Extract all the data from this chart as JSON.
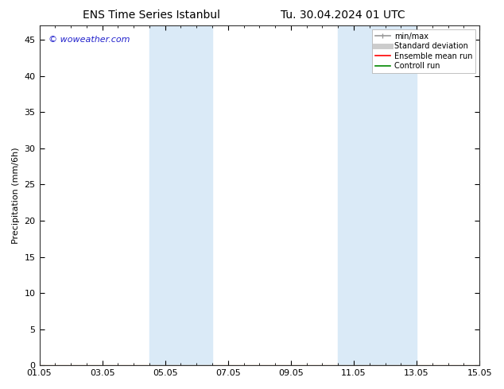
{
  "title_left": "ENS Time Series Istanbul",
  "title_right": "Tu. 30.04.2024 01 UTC",
  "ylabel": "Precipitation (mm/6h)",
  "watermark": "© woweather.com",
  "ylim": [
    0,
    47
  ],
  "yticks": [
    0,
    5,
    10,
    15,
    20,
    25,
    30,
    35,
    40,
    45
  ],
  "xtick_labels": [
    "01.05",
    "03.05",
    "05.05",
    "07.05",
    "09.05",
    "11.05",
    "13.05",
    "15.05"
  ],
  "xtick_positions": [
    0,
    2,
    4,
    6,
    8,
    10,
    12,
    14
  ],
  "xlim": [
    0,
    14
  ],
  "shaded_regions": [
    {
      "xstart": 3.5,
      "xend": 5.5
    },
    {
      "xstart": 9.5,
      "xend": 12.0
    }
  ],
  "shaded_color": "#daeaf7",
  "background_color": "#ffffff",
  "legend_items": [
    {
      "label": "min/max",
      "color": "#999999",
      "lw": 1.2
    },
    {
      "label": "Standard deviation",
      "color": "#cccccc",
      "lw": 5
    },
    {
      "label": "Ensemble mean run",
      "color": "#ff0000",
      "lw": 1.2
    },
    {
      "label": "Controll run",
      "color": "#008800",
      "lw": 1.2
    }
  ],
  "title_fontsize": 10,
  "axis_fontsize": 8,
  "tick_fontsize": 8,
  "watermark_color": "#2222cc",
  "watermark_fontsize": 8,
  "legend_fontsize": 7
}
